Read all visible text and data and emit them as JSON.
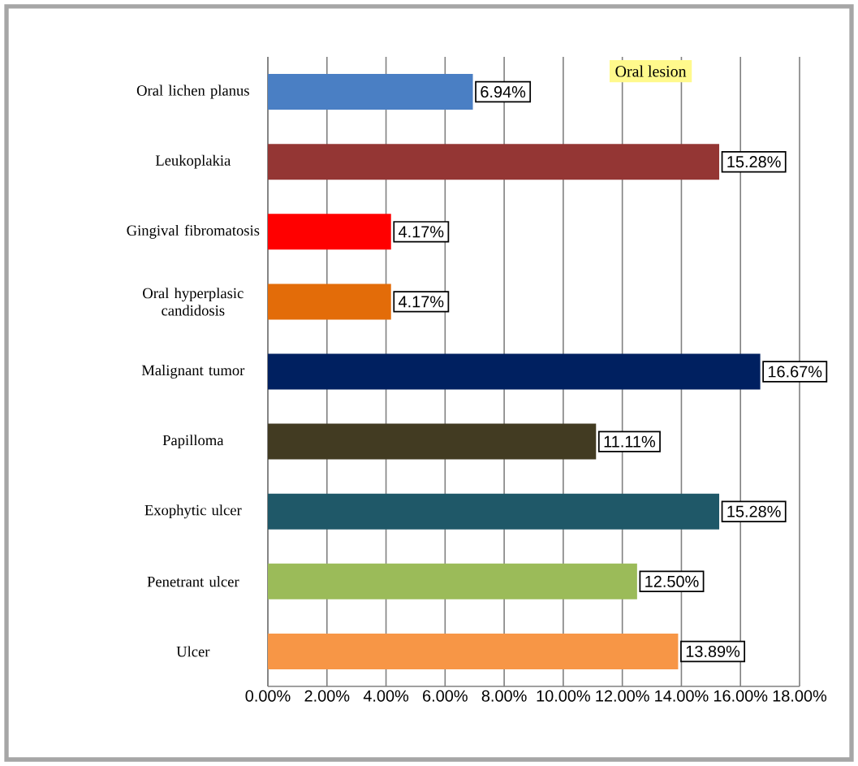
{
  "chart_data": {
    "type": "bar",
    "orientation": "horizontal",
    "title": "Oral lesion",
    "categories": [
      "Oral lichen planus",
      "Leukoplakia",
      "Gingival fibromatosis",
      "Oral hyperplasic candidosis",
      "Malignant tumor",
      "Papilloma",
      "Exophytic ulcer",
      "Penetrant ulcer",
      "Ulcer"
    ],
    "values": [
      6.94,
      15.28,
      4.17,
      4.17,
      16.67,
      11.11,
      15.28,
      12.5,
      13.89
    ],
    "value_labels": [
      "6.94%",
      "15.28%",
      "4.17%",
      "4.17%",
      "16.67%",
      "11.11%",
      "15.28%",
      "12.50%",
      "13.89%"
    ],
    "colors": [
      "#4a7fc4",
      "#943634",
      "#ff0000",
      "#e36c09",
      "#002060",
      "#423b22",
      "#1f5868",
      "#9bbb59",
      "#f79646"
    ],
    "xlim": [
      0,
      18
    ],
    "xticks": [
      {
        "value": 0,
        "label": "0.00%"
      },
      {
        "value": 2,
        "label": "2.00%"
      },
      {
        "value": 4,
        "label": "4.00%"
      },
      {
        "value": 6,
        "label": "6.00%"
      },
      {
        "value": 8,
        "label": "8.00%"
      },
      {
        "value": 10,
        "label": "10.00%"
      },
      {
        "value": 12,
        "label": "12.00%"
      },
      {
        "value": 14,
        "label": "14.00%"
      },
      {
        "value": 16,
        "label": "16.00%"
      },
      {
        "value": 18,
        "label": "18.00%"
      }
    ],
    "grid": "x"
  }
}
